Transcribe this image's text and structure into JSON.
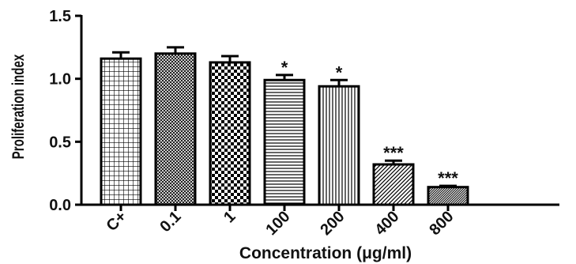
{
  "chart_data": {
    "type": "bar",
    "categories": [
      "C+",
      "0.1",
      "1",
      "100",
      "200",
      "400",
      "800"
    ],
    "values": [
      1.16,
      1.2,
      1.13,
      0.99,
      0.94,
      0.32,
      0.14
    ],
    "errors": [
      0.05,
      0.05,
      0.05,
      0.04,
      0.05,
      0.03,
      0.01
    ],
    "significance": [
      "",
      "",
      "",
      "*",
      "*",
      "***",
      "***"
    ],
    "patterns": [
      "grid",
      "crosshatch-fine",
      "checker",
      "horizontal",
      "vertical",
      "diagonal",
      "diagonal-dense"
    ],
    "xlabel": "Concentration (μg/ml)",
    "ylabel": "Proliferation index",
    "ylim": [
      0,
      1.5
    ],
    "yticks": [
      "0.0",
      "0.5",
      "1.0",
      "1.5"
    ],
    "colors": {
      "bar_stroke": "#000000",
      "pattern": "#000000",
      "background": "#ffffff"
    }
  }
}
